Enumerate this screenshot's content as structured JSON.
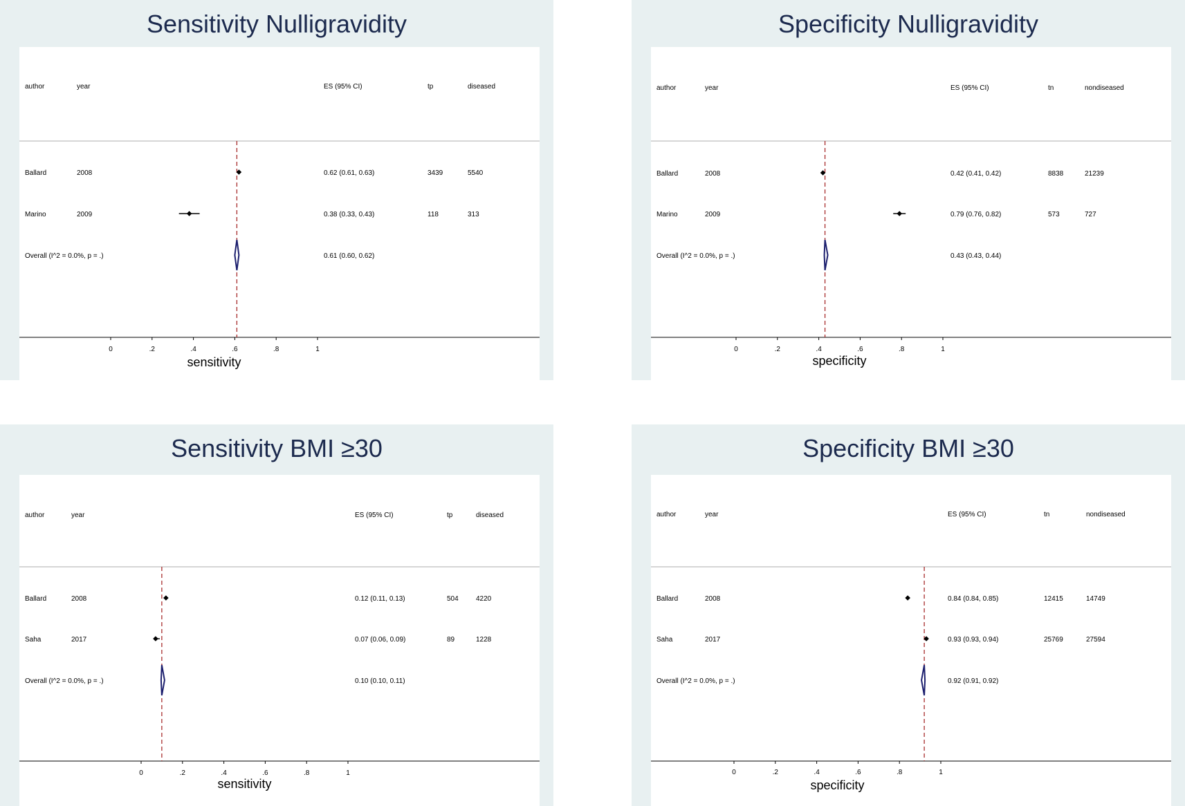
{
  "colors": {
    "background": "#e8f0f1",
    "plot_bg": "#ffffff",
    "title": "#1c2a4e",
    "diamond": "#1c1f6e",
    "ref_line": "#a01a1a",
    "point": "#000000",
    "divider": "#c8c8c8"
  },
  "chart_data": [
    {
      "type": "forest",
      "title": "Sensitivity Nulligravidity",
      "xlabel": "sensitivity",
      "xlim": [
        0,
        1
      ],
      "x_ticks": [
        "0",
        ".2",
        ".4",
        ".6",
        ".8",
        "1"
      ],
      "columns": {
        "author": "author",
        "year": "year",
        "es": "ES (95% CI)",
        "count": "tp",
        "total": "diseased"
      },
      "studies": [
        {
          "author": "Ballard",
          "year": "2008",
          "es": 0.62,
          "lo": 0.61,
          "hi": 0.63,
          "ci_text": "0.62 (0.61, 0.63)",
          "count": "3439",
          "total": "5540"
        },
        {
          "author": "Marino",
          "year": "2009",
          "es": 0.38,
          "lo": 0.33,
          "hi": 0.43,
          "ci_text": "0.38 (0.33, 0.43)",
          "count": "118",
          "total": "313"
        }
      ],
      "overall": {
        "label": "Overall  (I^2 = 0.0%, p = .)",
        "es": 0.61,
        "lo": 0.6,
        "hi": 0.62,
        "ci_text": "0.61 (0.60, 0.62)"
      }
    },
    {
      "type": "forest",
      "title": "Specificity Nulligravidity",
      "xlabel": "specificity",
      "xlim": [
        0,
        1
      ],
      "x_ticks": [
        "0",
        ".2",
        ".4",
        ".6",
        ".8",
        "1"
      ],
      "columns": {
        "author": "author",
        "year": "year",
        "es": "ES (95% CI)",
        "count": "tn",
        "total": "nondiseased"
      },
      "studies": [
        {
          "author": "Ballard",
          "year": "2008",
          "es": 0.42,
          "lo": 0.41,
          "hi": 0.42,
          "ci_text": "0.42 (0.41, 0.42)",
          "count": "8838",
          "total": "21239"
        },
        {
          "author": "Marino",
          "year": "2009",
          "es": 0.79,
          "lo": 0.76,
          "hi": 0.82,
          "ci_text": "0.79 (0.76, 0.82)",
          "count": "573",
          "total": "727"
        }
      ],
      "overall": {
        "label": "Overall  (I^2 = 0.0%, p = .)",
        "es": 0.43,
        "lo": 0.43,
        "hi": 0.44,
        "ci_text": "0.43 (0.43, 0.44)"
      }
    },
    {
      "type": "forest",
      "title": "Sensitivity BMI ≥30",
      "xlabel": "sensitivity",
      "xlim": [
        0,
        1
      ],
      "x_ticks": [
        "0",
        ".2",
        ".4",
        ".6",
        ".8",
        "1"
      ],
      "columns": {
        "author": "author",
        "year": "year",
        "es": "ES (95% CI)",
        "count": "tp",
        "total": "diseased"
      },
      "studies": [
        {
          "author": "Ballard",
          "year": "2008",
          "es": 0.12,
          "lo": 0.11,
          "hi": 0.13,
          "ci_text": "0.12 (0.11, 0.13)",
          "count": "504",
          "total": "4220"
        },
        {
          "author": "Saha",
          "year": "2017",
          "es": 0.07,
          "lo": 0.06,
          "hi": 0.09,
          "ci_text": "0.07 (0.06, 0.09)",
          "count": "89",
          "total": "1228"
        }
      ],
      "overall": {
        "label": "Overall  (I^2 = 0.0%, p = .)",
        "es": 0.1,
        "lo": 0.1,
        "hi": 0.11,
        "ci_text": "0.10 (0.10, 0.11)"
      }
    },
    {
      "type": "forest",
      "title": "Specificity BMI ≥30",
      "xlabel": "specificity",
      "xlim": [
        0,
        1
      ],
      "x_ticks": [
        "0",
        ".2",
        ".4",
        ".6",
        ".8",
        "1"
      ],
      "columns": {
        "author": "author",
        "year": "year",
        "es": "ES (95% CI)",
        "count": "tn",
        "total": "nondiseased"
      },
      "studies": [
        {
          "author": "Ballard",
          "year": "2008",
          "es": 0.84,
          "lo": 0.84,
          "hi": 0.85,
          "ci_text": "0.84 (0.84, 0.85)",
          "count": "12415",
          "total": "14749"
        },
        {
          "author": "Saha",
          "year": "2017",
          "es": 0.93,
          "lo": 0.93,
          "hi": 0.94,
          "ci_text": "0.93 (0.93, 0.94)",
          "count": "25769",
          "total": "27594"
        }
      ],
      "overall": {
        "label": "Overall  (I^2 = 0.0%, p = .)",
        "es": 0.92,
        "lo": 0.91,
        "hi": 0.92,
        "ci_text": "0.92 (0.91, 0.92)"
      }
    }
  ]
}
